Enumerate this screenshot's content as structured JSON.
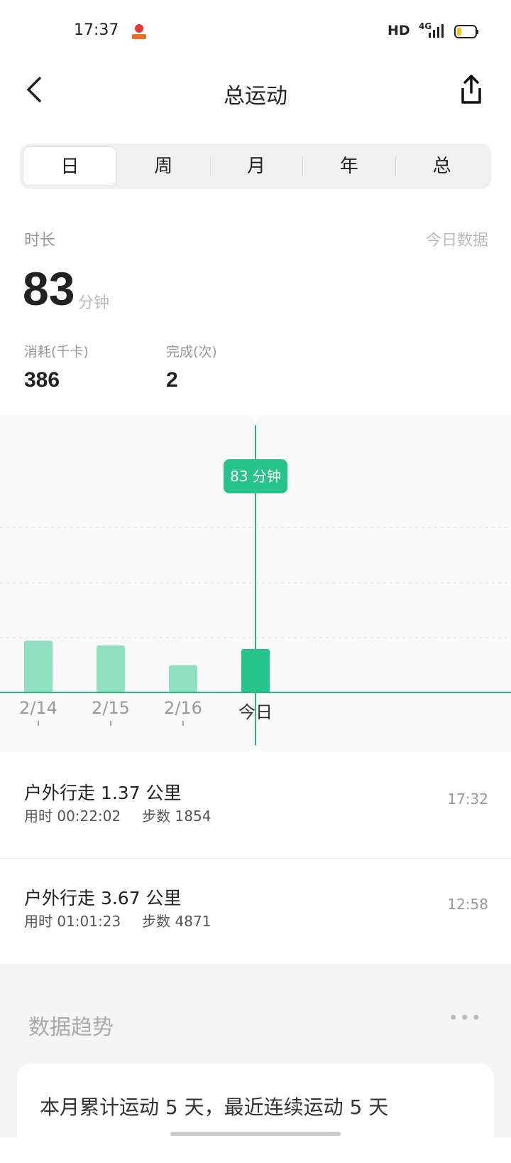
{
  "status_bar": {
    "time": "17:37",
    "network": "HD",
    "signal": "4G",
    "battery_level": 0.2
  },
  "header": {
    "title": "总运动"
  },
  "tabs": [
    {
      "label": "日",
      "selected": true
    },
    {
      "label": "周"
    },
    {
      "label": "月"
    },
    {
      "label": "年"
    },
    {
      "label": "总"
    }
  ],
  "summary": {
    "label": "时长",
    "today_link": "今日数据",
    "value": "83",
    "unit": "分钟",
    "stats": [
      {
        "label": "消耗(千卡)",
        "value": "386"
      },
      {
        "label": "完成(次)",
        "value": "2"
      }
    ]
  },
  "chart_data": {
    "type": "bar",
    "categories": [
      "2/14",
      "2/15",
      "2/16",
      "今日"
    ],
    "values": [
      99,
      90,
      52,
      83
    ],
    "unit": "分钟",
    "selected_index": 3,
    "tooltip": "83 分钟",
    "colors": {
      "bar": "#8fdfc0",
      "selected": "#26c48a",
      "line": "#2bb885"
    },
    "grid": true
  },
  "records": [
    {
      "title": "户外行走 1.37 公里",
      "duration": "用时 00:22:02",
      "steps": "步数 1854",
      "time": "17:32"
    },
    {
      "title": "户外行走 3.67 公里",
      "duration": "用时 01:01:23",
      "steps": "步数 4871",
      "time": "12:58"
    }
  ],
  "trend": {
    "title": "数据趋势",
    "card_text": "本月累计运动 5 天，最近连续运动 5 天"
  }
}
